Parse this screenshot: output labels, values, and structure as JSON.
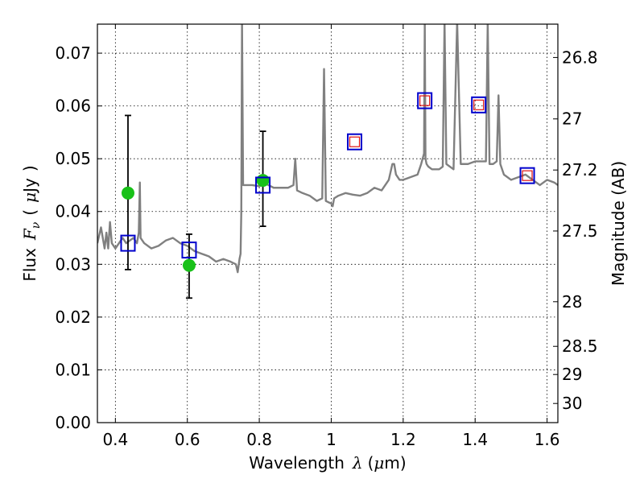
{
  "chart_data": {
    "type": "scatter",
    "xlabel": {
      "main": "Wavelength",
      "symbol": "λ",
      "unit_open": "(",
      "unit_mu": "μ",
      "unit_rest": "m)"
    },
    "ylabel": {
      "main": "Flux",
      "symbol": "F",
      "sub": "ν",
      "unit_open": "(",
      "unit_mu": "μ",
      "unit_rest": "Jy",
      "unit_close": ")"
    },
    "ylabel_right": "Magnitude (AB)",
    "xlim": [
      0.35,
      1.63
    ],
    "ylim": [
      0.0,
      0.0755
    ],
    "grid": true,
    "x_ticks": [
      {
        "value": 0.4,
        "label": "0.4"
      },
      {
        "value": 0.6,
        "label": "0.6"
      },
      {
        "value": 0.8,
        "label": "0.8"
      },
      {
        "value": 1.0,
        "label": "1"
      },
      {
        "value": 1.2,
        "label": "1.2"
      },
      {
        "value": 1.4,
        "label": "1.4"
      },
      {
        "value": 1.6,
        "label": "1.6"
      }
    ],
    "y_ticks": [
      {
        "value": 0.0,
        "label": "0.00"
      },
      {
        "value": 0.01,
        "label": "0.01"
      },
      {
        "value": 0.02,
        "label": "0.02"
      },
      {
        "value": 0.03,
        "label": "0.03"
      },
      {
        "value": 0.04,
        "label": "0.04"
      },
      {
        "value": 0.05,
        "label": "0.05"
      },
      {
        "value": 0.06,
        "label": "0.06"
      },
      {
        "value": 0.07,
        "label": "0.07"
      }
    ],
    "mag_ticks": [
      {
        "value": 26.8,
        "label": "26.8"
      },
      {
        "value": 27.0,
        "label": "27"
      },
      {
        "value": 27.2,
        "label": "27.2"
      },
      {
        "value": 27.5,
        "label": "27.5"
      },
      {
        "value": 28.0,
        "label": "28"
      },
      {
        "value": 28.5,
        "label": "28.5"
      },
      {
        "value": 29.0,
        "label": "29"
      },
      {
        "value": 30.0,
        "label": "30"
      }
    ],
    "series": [
      {
        "kind": "model_spectrum",
        "color": "#808080",
        "x": [
          0.35,
          0.36,
          0.365,
          0.37,
          0.375,
          0.38,
          0.385,
          0.39,
          0.4,
          0.41,
          0.42,
          0.43,
          0.44,
          0.45,
          0.46,
          0.465,
          0.468,
          0.47,
          0.48,
          0.5,
          0.52,
          0.54,
          0.56,
          0.58,
          0.6,
          0.62,
          0.64,
          0.66,
          0.68,
          0.7,
          0.72,
          0.735,
          0.74,
          0.745,
          0.748,
          0.75,
          0.752,
          0.755,
          0.76,
          0.78,
          0.8,
          0.82,
          0.84,
          0.86,
          0.88,
          0.895,
          0.9,
          0.905,
          0.92,
          0.94,
          0.96,
          0.975,
          0.98,
          0.985,
          1.0,
          1.004,
          1.008,
          1.02,
          1.04,
          1.06,
          1.08,
          1.1,
          1.12,
          1.14,
          1.16,
          1.17,
          1.175,
          1.18,
          1.19,
          1.2,
          1.22,
          1.24,
          1.25,
          1.258,
          1.26,
          1.262,
          1.265,
          1.27,
          1.28,
          1.3,
          1.31,
          1.315,
          1.32,
          1.34,
          1.35,
          1.36,
          1.38,
          1.4,
          1.42,
          1.43,
          1.435,
          1.44,
          1.45,
          1.46,
          1.465,
          1.47,
          1.48,
          1.5,
          1.52,
          1.54,
          1.56,
          1.58,
          1.6,
          1.62,
          1.63
        ],
        "y": [
          0.034,
          0.037,
          0.035,
          0.033,
          0.036,
          0.033,
          0.038,
          0.034,
          0.033,
          0.034,
          0.035,
          0.034,
          0.0345,
          0.035,
          0.034,
          0.036,
          0.0455,
          0.035,
          0.034,
          0.033,
          0.0335,
          0.0345,
          0.035,
          0.034,
          0.0335,
          0.0325,
          0.032,
          0.0315,
          0.0305,
          0.031,
          0.0305,
          0.03,
          0.0285,
          0.031,
          0.032,
          0.04,
          0.076,
          0.045,
          0.045,
          0.045,
          0.0448,
          0.0452,
          0.0445,
          0.0445,
          0.0445,
          0.045,
          0.05,
          0.044,
          0.0435,
          0.043,
          0.042,
          0.0425,
          0.067,
          0.042,
          0.0415,
          0.041,
          0.0425,
          0.043,
          0.0435,
          0.0432,
          0.043,
          0.0435,
          0.0445,
          0.044,
          0.046,
          0.049,
          0.049,
          0.047,
          0.046,
          0.046,
          0.0465,
          0.047,
          0.049,
          0.051,
          0.076,
          0.05,
          0.049,
          0.0485,
          0.048,
          0.048,
          0.0485,
          0.076,
          0.049,
          0.048,
          0.076,
          0.049,
          0.049,
          0.0495,
          0.0495,
          0.0495,
          0.076,
          0.049,
          0.049,
          0.0495,
          0.062,
          0.049,
          0.047,
          0.046,
          0.0465,
          0.047,
          0.046,
          0.045,
          0.046,
          0.0455,
          0.045
        ]
      },
      {
        "kind": "observed",
        "marker": "circle",
        "color": "#19c119",
        "x": [
          0.435,
          0.605,
          0.81
        ],
        "y": [
          0.0435,
          0.0298,
          0.0459
        ],
        "yerr_low": [
          0.029,
          0.0236,
          0.0372
        ],
        "yerr_high": [
          0.0582,
          0.0357,
          0.0552
        ]
      },
      {
        "kind": "synthetic_blue",
        "marker": "open-square",
        "color": "#0000cc",
        "x": [
          0.435,
          0.605,
          0.81,
          1.065,
          1.26,
          1.41,
          1.545
        ],
        "y": [
          0.034,
          0.0327,
          0.045,
          0.0532,
          0.061,
          0.0602,
          0.0468
        ]
      },
      {
        "kind": "synthetic_red",
        "marker": "open-square",
        "color": "#dd1111",
        "x": [
          1.065,
          1.26,
          1.41,
          1.545
        ],
        "y": [
          0.0532,
          0.061,
          0.0602,
          0.0468
        ]
      }
    ]
  }
}
